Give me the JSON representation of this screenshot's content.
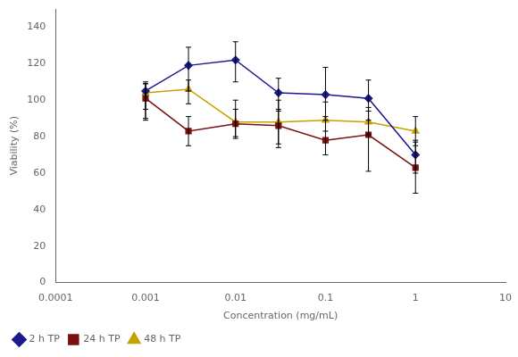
{
  "chart_data": {
    "type": "line",
    "x": [
      0.001,
      0.003,
      0.01,
      0.03,
      0.1,
      0.3,
      1.0
    ],
    "series": [
      {
        "name": "2 h TP",
        "color": "#1a1a8c",
        "marker": "diamond",
        "values": [
          105,
          119,
          122,
          104,
          103,
          101,
          70
        ],
        "error_low": [
          10,
          14,
          12,
          10,
          14,
          12,
          10
        ],
        "error_high": [
          5,
          10,
          10,
          8,
          15,
          10,
          8
        ]
      },
      {
        "name": "24 h TP",
        "color": "#7a1010",
        "marker": "square",
        "values": [
          101,
          83,
          87,
          86,
          78,
          81,
          63
        ],
        "error_low": [
          12,
          8,
          8,
          10,
          8,
          20,
          14
        ],
        "error_high": [
          8,
          8,
          8,
          9,
          13,
          15,
          14
        ]
      },
      {
        "name": "48 h TP",
        "color": "#c8a000",
        "marker": "triangle",
        "values": [
          104,
          106,
          88,
          88,
          89,
          88,
          83
        ],
        "error_low": [
          14,
          8,
          8,
          14,
          6,
          7,
          8
        ],
        "error_high": [
          5,
          5,
          12,
          12,
          10,
          6,
          8
        ]
      }
    ],
    "xlabel": "Concentration (mg/mL)",
    "ylabel": "Viability (%)",
    "log": "x",
    "xlim": [
      0.0001,
      10
    ],
    "xticks": [
      0.0001,
      0.001,
      0.01,
      0.1,
      1,
      10
    ],
    "ylim": [
      0,
      150
    ],
    "yticks": [
      0,
      20,
      40,
      60,
      80,
      100,
      120,
      140
    ],
    "grid": false,
    "legend": "bottom"
  }
}
